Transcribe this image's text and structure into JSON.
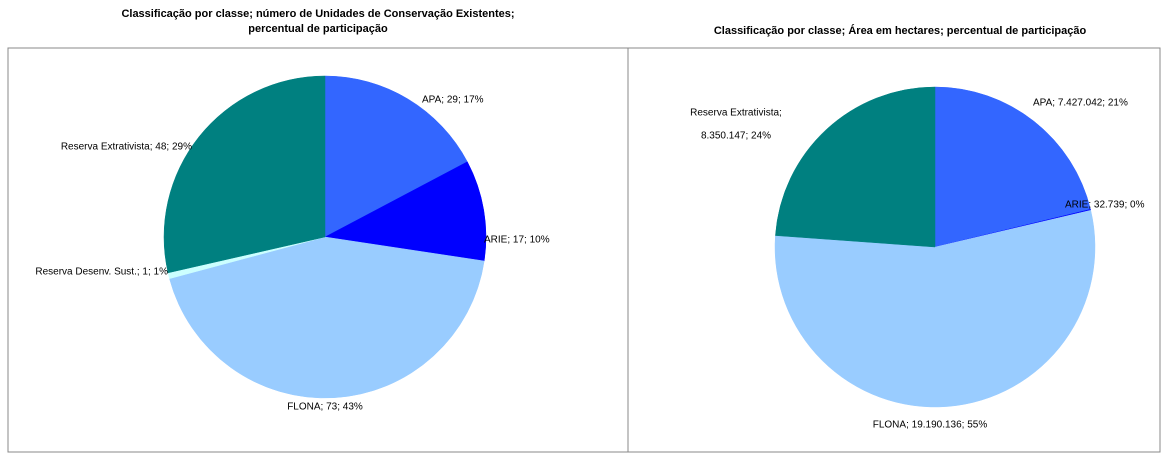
{
  "chart_data": [
    {
      "type": "pie",
      "title": [
        "Classificação por classe; número de Unidades de Conservação Existentes;",
        "percentual de participação"
      ],
      "categories": [
        "APA",
        "ARIE",
        "FLONA",
        "Reserva Desenv. Sust.",
        "Reserva Extrativista"
      ],
      "values": [
        29,
        17,
        73,
        1,
        48
      ],
      "value_labels": [
        "APA; 29; 17%",
        "ARIE; 17; 10%",
        "FLONA; 73; 43%",
        "Reserva Desenv. Sust.; 1; 1%",
        "Reserva Extrativista; 48; 29%"
      ],
      "colors": [
        "#3366ff",
        "#0000ff",
        "#99ccff",
        "#ccffff",
        "#008080"
      ]
    },
    {
      "type": "pie",
      "title": [
        "Classificação por classe; Área em hectares; percentual de participação"
      ],
      "categories": [
        "APA",
        "ARIE",
        "FLONA",
        "Reserva Extrativista"
      ],
      "values": [
        7427042,
        32739,
        19190136,
        8350147
      ],
      "value_labels": [
        "APA; 7.427.042; 21%",
        "ARIE; 32.739; 0%",
        "FLONA; 19.190.136; 55%",
        [
          "Reserva Extrativista;",
          "8.350.147; 24%"
        ]
      ],
      "colors": [
        "#3366ff",
        "#0000ff",
        "#99ccff",
        "#008080"
      ]
    }
  ]
}
